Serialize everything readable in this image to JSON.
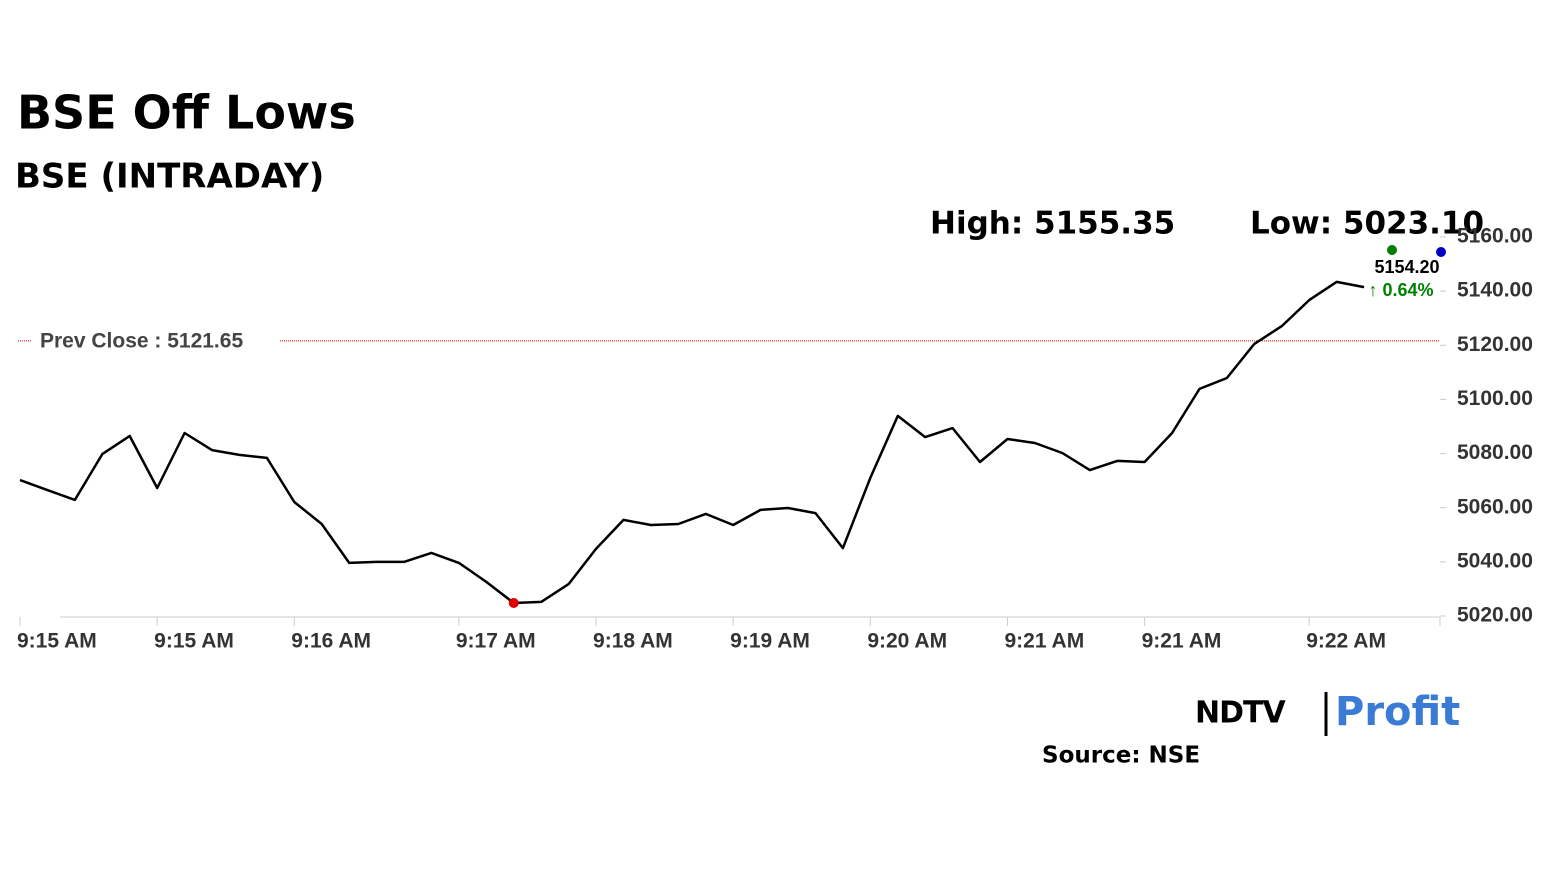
{
  "chart_data": {
    "type": "line",
    "title": "BSE Off Lows",
    "subtitle": "BSE (INTRADAY)",
    "high_label": "High: 5155.35",
    "low_label": "Low: 5023.10",
    "last_value_label": "5154.20",
    "change_label": "↑ 0.64%",
    "reference_line": {
      "value": 5121.65,
      "label": "Prev Close : 5121.65"
    },
    "source": "Source: NSE",
    "logo": [
      "NDTV",
      "Profit"
    ],
    "color": "#000000",
    "low_point_color": "#e00000",
    "categories": [
      "9:15 AM",
      null,
      null,
      null,
      null,
      "9:15 AM",
      null,
      null,
      null,
      null,
      "9:16 AM",
      null,
      null,
      null,
      null,
      null,
      "9:17 AM",
      null,
      null,
      null,
      null,
      "9:18 AM",
      null,
      null,
      null,
      null,
      "9:19 AM",
      null,
      null,
      null,
      null,
      "9:20 AM",
      null,
      null,
      null,
      null,
      "9:21 AM",
      null,
      null,
      null,
      null,
      "9:21 AM",
      null,
      null,
      null,
      null,
      null,
      "9:22 AM",
      null,
      null
    ],
    "values": [
      5070.2,
      5066.5,
      5062.9,
      5079.8,
      5086.5,
      5067.3,
      5087.6,
      5081.3,
      5079.5,
      5078.4,
      5062.1,
      5054.0,
      5039.6,
      5040.0,
      5040.0,
      5043.3,
      5039.6,
      5032.6,
      5024.8,
      5025.2,
      5031.8,
      5044.8,
      5055.5,
      5053.6,
      5054.0,
      5057.7,
      5053.6,
      5059.2,
      5059.9,
      5058.0,
      5045.1,
      5071.0,
      5093.9,
      5086.1,
      5089.4,
      5076.9,
      5085.4,
      5083.9,
      5080.2,
      5073.9,
      5077.3,
      5076.9,
      5087.6,
      5103.9,
      5107.9,
      5120.5,
      5127.1,
      5136.7,
      5143.4,
      5141.5
    ],
    "ylim": [
      5020,
      5160
    ],
    "yticks": [
      {
        "value": 5020,
        "label": "5020.00"
      },
      {
        "value": 5040,
        "label": "5040.00"
      },
      {
        "value": 5060,
        "label": "5060.00"
      },
      {
        "value": 5080,
        "label": "5080.00"
      },
      {
        "value": 5100,
        "label": "5100.00"
      },
      {
        "value": 5120,
        "label": "5120.00"
      },
      {
        "value": 5140,
        "label": "5140.00"
      },
      {
        "value": 5160,
        "label": "5160.00"
      }
    ]
  }
}
